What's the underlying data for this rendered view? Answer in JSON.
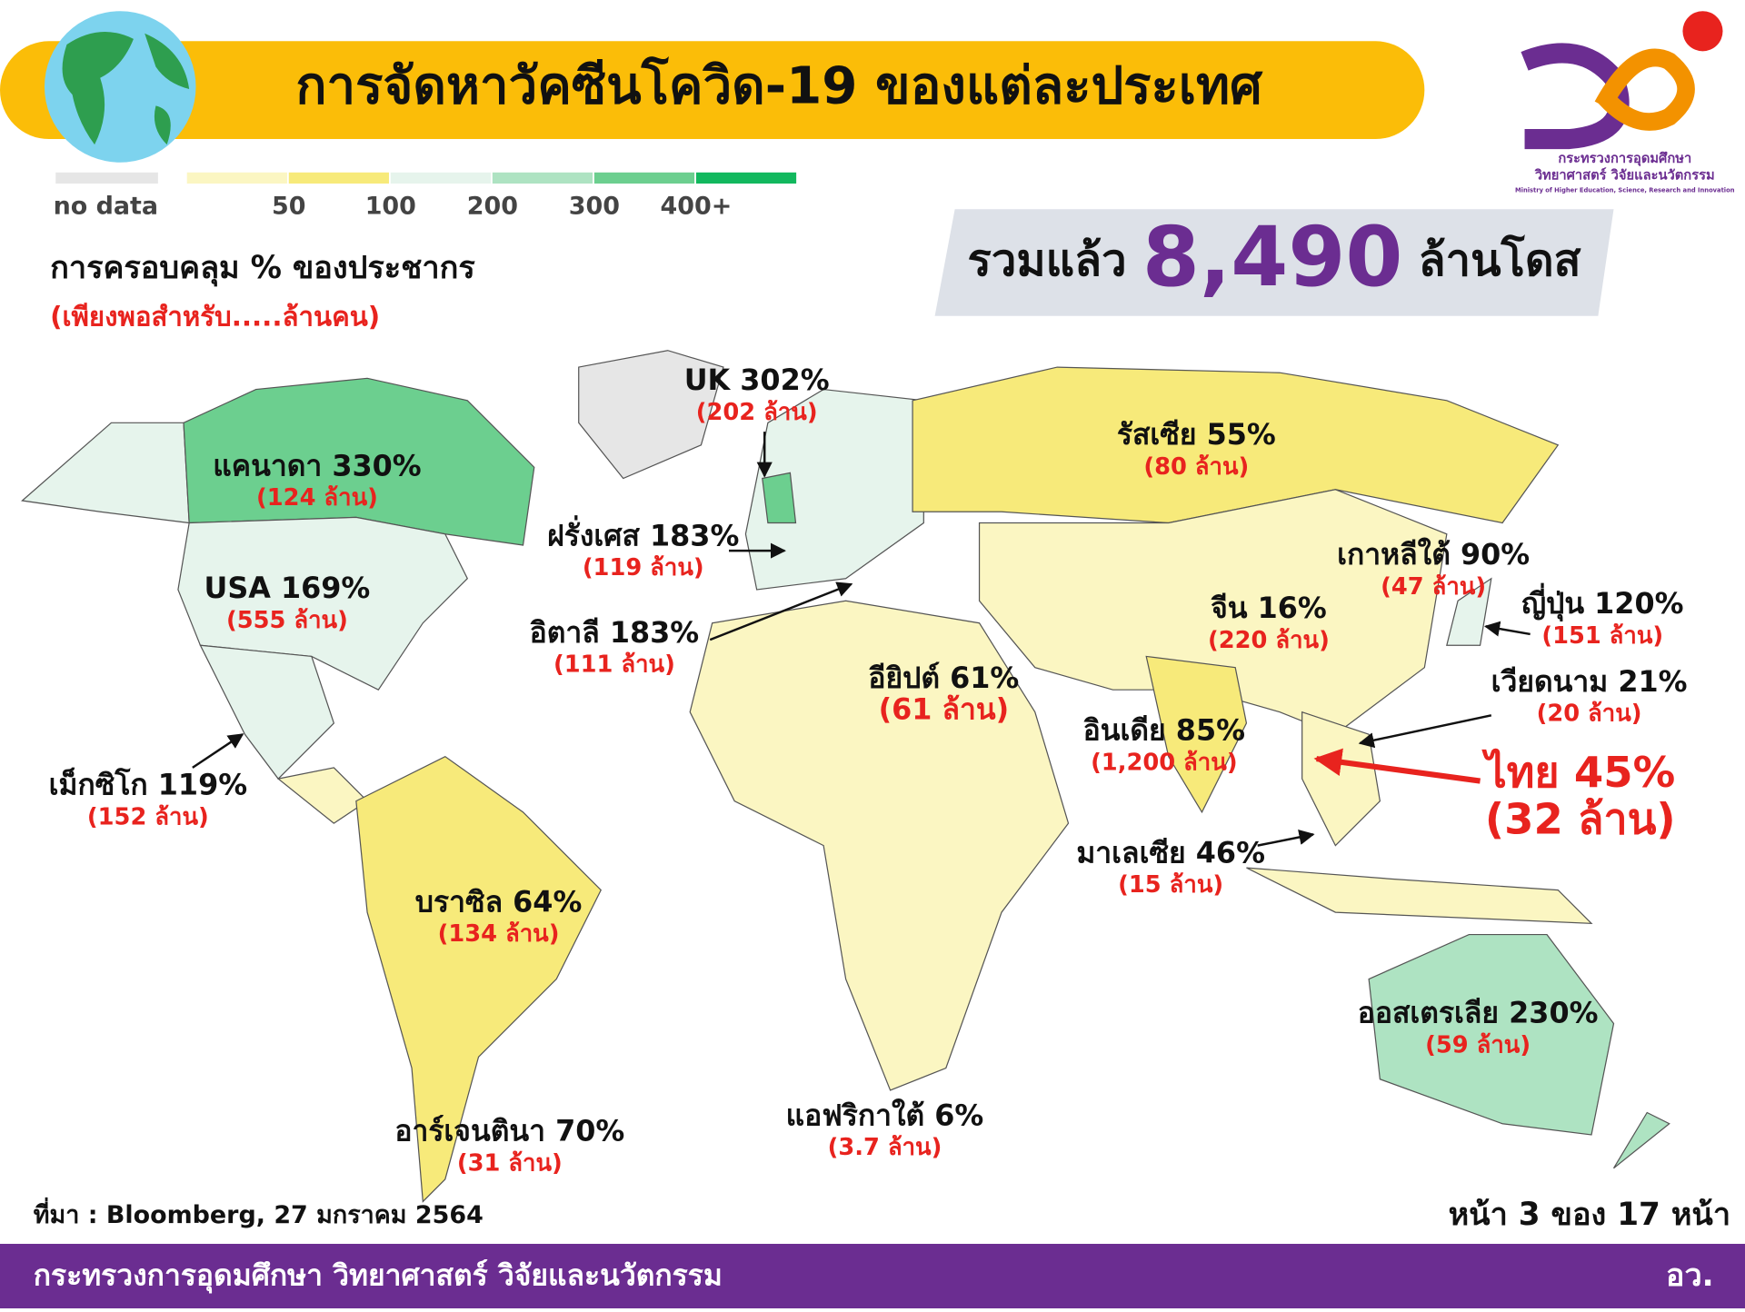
{
  "header": {
    "title": "การจัดหาวัคซีนโควิด-19 ของแต่ละประเทศ"
  },
  "legend": {
    "no_data": {
      "label": "no data",
      "color": "#e6e6e6"
    },
    "colors": [
      "#fbf6c2",
      "#f7ea7a",
      "#e6f4ec",
      "#aee3c2",
      "#6ccf8f",
      "#12b85e"
    ],
    "labels": [
      "50",
      "100",
      "200",
      "300",
      "400+"
    ]
  },
  "coverage": {
    "title": "การครอบคลุม % ของประชากร",
    "note": "(เพียงพอสำหรับ.....ล้านคน)"
  },
  "total": {
    "prefix": "รวมแล้ว",
    "value": "8,490",
    "suffix": "ล้านโดส"
  },
  "logo": {
    "line1": "กระทรวงการอุดมศึกษา",
    "line2": "วิทยาศาสตร์ วิจัยและนวัตกรรม",
    "line3": "Ministry of Higher Education, Science, Research and Innovation"
  },
  "countries": [
    {
      "name": "UK 302%",
      "detail": "(202 ล้าน)"
    },
    {
      "name": "แคนาดา 330%",
      "detail": "(124 ล้าน)"
    },
    {
      "name": "ฝรั่งเศส 183%",
      "detail": "(119 ล้าน)"
    },
    {
      "name": "USA 169%",
      "detail": "(555 ล้าน)"
    },
    {
      "name": "อิตาลี 183%",
      "detail": "(111 ล้าน)"
    },
    {
      "name": "เม็กซิโก 119%",
      "detail": "(152 ล้าน)"
    },
    {
      "name": "รัสเซีย 55%",
      "detail": "(80 ล้าน)"
    },
    {
      "name": "เกาหลีใต้ 90%",
      "detail": "(47 ล้าน)"
    },
    {
      "name": "ญี่ปุ่น 120%",
      "detail": "(151 ล้าน)"
    },
    {
      "name": "จีน 16%",
      "detail": "(220 ล้าน)"
    },
    {
      "name": "อียิปต์ 61%",
      "detail": "(61 ล้าน)"
    },
    {
      "name": "อินเดีย 85%",
      "detail": "(1,200 ล้าน)"
    },
    {
      "name": "เวียดนาม 21%",
      "detail": "(20 ล้าน)"
    },
    {
      "name": "ไทย 45%",
      "detail": "(32 ล้าน)"
    },
    {
      "name": "มาเลเซีย 46%",
      "detail": "(15 ล้าน)"
    },
    {
      "name": "บราซิล 64%",
      "detail": "(134 ล้าน)"
    },
    {
      "name": "ออสเตรเลีย 230%",
      "detail": "(59 ล้าน)"
    },
    {
      "name": "อาร์เจนตินา 70%",
      "detail": "(31 ล้าน)"
    },
    {
      "name": "แอฟริกาใต้ 6%",
      "detail": "(3.7 ล้าน)"
    }
  ],
  "source": "ที่มา : Bloomberg, 27 มกราคม 2564",
  "page": "หน้า 3 ของ 17 หน้า",
  "footer": {
    "ministry": "กระทรวงการอุดมศึกษา วิทยาศาสตร์ วิจัยและนวัตกรรม",
    "short": "อว."
  }
}
